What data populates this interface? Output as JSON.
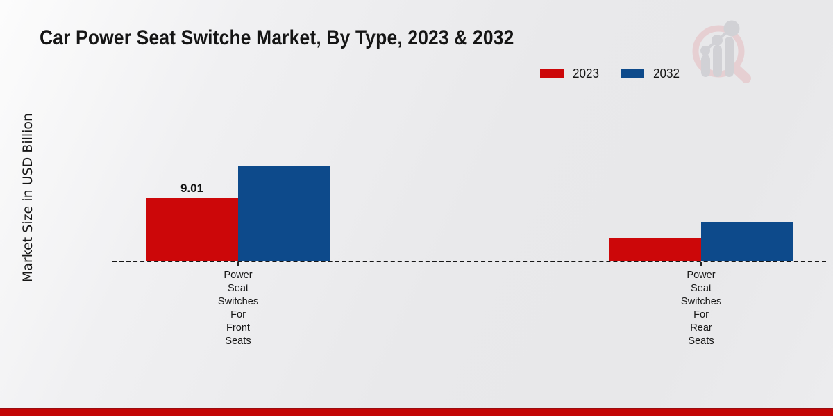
{
  "chart_data": {
    "type": "bar",
    "title": "Car Power Seat Switche Market, By Type, 2023 & 2032",
    "ylabel": "Market Size in USD Billion",
    "xlabel": "",
    "categories": [
      "Power Seat Switches For Front Seats",
      "Power Seat Switches For Rear Seats"
    ],
    "series": [
      {
        "name": "2023",
        "color": "#cc0709",
        "values": [
          9.01,
          3.4
        ]
      },
      {
        "name": "2032",
        "color": "#0d4a8b",
        "values": [
          13.6,
          5.6
        ]
      }
    ],
    "value_labels": [
      {
        "series": 0,
        "category": 0,
        "text": "9.01"
      }
    ],
    "ylim": [
      0,
      15
    ],
    "grid": "off",
    "legend_position": "top-right",
    "baseline_style": "dashed"
  },
  "branding": {
    "watermark_icon": "magnifier-bar-chart-logo",
    "accent_red": "#c30505"
  }
}
